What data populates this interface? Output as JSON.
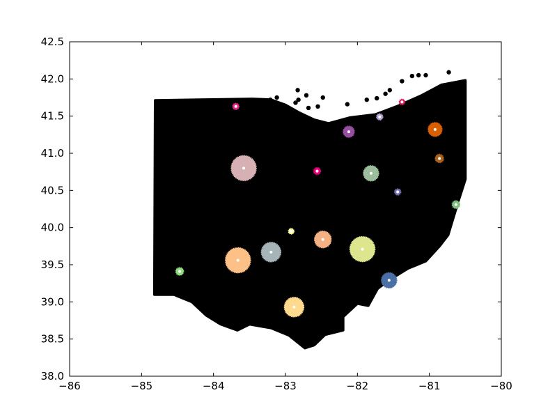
{
  "chart_data": {
    "type": "scatter",
    "title": "",
    "xlabel": "",
    "ylabel": "",
    "xlim": [
      -86,
      -80
    ],
    "ylim": [
      38.0,
      42.5
    ],
    "grid": false,
    "x_ticks": [
      -86,
      -85,
      -84,
      -83,
      -82,
      -81,
      -80
    ],
    "x_tick_labels": [
      "−86",
      "−85",
      "−84",
      "−83",
      "−82",
      "−81",
      "−80"
    ],
    "y_ticks": [
      38.0,
      38.5,
      39.0,
      39.5,
      40.0,
      40.5,
      41.0,
      41.5,
      42.0,
      42.5
    ],
    "y_tick_labels": [
      "38.0",
      "38.5",
      "39.0",
      "39.5",
      "40.0",
      "40.5",
      "41.0",
      "41.5",
      "42.0",
      "42.5"
    ],
    "background_series": {
      "name": "",
      "color": "#000000",
      "outline": [
        [
          -84.81,
          41.71
        ],
        [
          -83.46,
          41.73
        ],
        [
          -83.2,
          41.72
        ],
        [
          -83.0,
          41.65
        ],
        [
          -82.82,
          41.55
        ],
        [
          -82.6,
          41.45
        ],
        [
          -82.4,
          41.4
        ],
        [
          -82.1,
          41.48
        ],
        [
          -81.75,
          41.52
        ],
        [
          -81.45,
          41.63
        ],
        [
          -81.1,
          41.78
        ],
        [
          -80.83,
          41.92
        ],
        [
          -80.5,
          41.98
        ],
        [
          -80.5,
          40.65
        ],
        [
          -80.6,
          40.35
        ],
        [
          -80.74,
          39.9
        ],
        [
          -80.86,
          39.75
        ],
        [
          -81.05,
          39.55
        ],
        [
          -81.3,
          39.45
        ],
        [
          -81.55,
          39.3
        ],
        [
          -81.72,
          39.18
        ],
        [
          -81.85,
          38.95
        ],
        [
          -82.0,
          38.98
        ],
        [
          -82.2,
          38.8
        ],
        [
          -82.2,
          38.62
        ],
        [
          -82.45,
          38.56
        ],
        [
          -82.6,
          38.42
        ],
        [
          -82.73,
          38.38
        ],
        [
          -82.95,
          38.55
        ],
        [
          -83.2,
          38.65
        ],
        [
          -83.5,
          38.7
        ],
        [
          -83.67,
          38.62
        ],
        [
          -83.9,
          38.7
        ],
        [
          -84.1,
          38.82
        ],
        [
          -84.3,
          39.0
        ],
        [
          -84.55,
          39.1
        ],
        [
          -84.82,
          39.1
        ],
        [
          -84.81,
          41.71
        ]
      ],
      "islands": [
        [
          -82.83,
          41.85
        ],
        [
          -82.71,
          41.78
        ],
        [
          -82.48,
          41.75
        ],
        [
          -82.82,
          41.72
        ],
        [
          -82.86,
          41.68
        ],
        [
          -82.55,
          41.63
        ],
        [
          -82.68,
          41.61
        ],
        [
          -82.14,
          41.66
        ],
        [
          -81.87,
          41.72
        ],
        [
          -81.73,
          41.74
        ],
        [
          -81.61,
          41.8
        ],
        [
          -81.55,
          41.85
        ],
        [
          -81.38,
          41.97
        ],
        [
          -81.24,
          42.04
        ],
        [
          -81.15,
          42.05
        ],
        [
          -81.05,
          42.05
        ],
        [
          -80.73,
          42.09
        ],
        [
          -83.21,
          41.72
        ],
        [
          -83.12,
          41.75
        ]
      ]
    },
    "series": [
      {
        "color": "#e7298a",
        "x": -83.69,
        "y": 41.63,
        "size": 9
      },
      {
        "color": "#e31a5c",
        "x": -81.38,
        "y": 41.69,
        "size": 8
      },
      {
        "color": "#b1a1d0",
        "x": -81.69,
        "y": 41.49,
        "size": 9
      },
      {
        "color": "#984ea3",
        "x": -82.12,
        "y": 41.29,
        "size": 16
      },
      {
        "color": "#d95f02",
        "x": -80.92,
        "y": 41.32,
        "size": 20
      },
      {
        "color": "#a6611a",
        "x": -80.86,
        "y": 40.93,
        "size": 12
      },
      {
        "color": "#d6b0b2",
        "x": -83.58,
        "y": 40.8,
        "size": 36
      },
      {
        "color": "#e7007a",
        "x": -82.56,
        "y": 40.76,
        "size": 10
      },
      {
        "color": "#9bbd9c",
        "x": -81.81,
        "y": 40.73,
        "size": 22
      },
      {
        "color": "#7570b3",
        "x": -81.44,
        "y": 40.48,
        "size": 9
      },
      {
        "color": "#7fbf7f",
        "x": -80.63,
        "y": 40.31,
        "size": 11
      },
      {
        "color": "#ffff99",
        "x": -82.92,
        "y": 39.95,
        "size": 8
      },
      {
        "color": "#f4b183",
        "x": -82.48,
        "y": 39.84,
        "size": 24
      },
      {
        "color": "#a6b3b8",
        "x": -83.2,
        "y": 39.67,
        "size": 28
      },
      {
        "color": "#dde58f",
        "x": -81.93,
        "y": 39.71,
        "size": 36
      },
      {
        "color": "#fdc086",
        "x": -83.66,
        "y": 39.56,
        "size": 36
      },
      {
        "color": "#8fdc7f",
        "x": -84.47,
        "y": 39.41,
        "size": 11
      },
      {
        "color": "#4a6fa5",
        "x": -81.56,
        "y": 39.29,
        "size": 22
      },
      {
        "color": "#fed98e",
        "x": -82.88,
        "y": 38.93,
        "size": 28
      }
    ],
    "centroid_color": "#ffffff"
  }
}
